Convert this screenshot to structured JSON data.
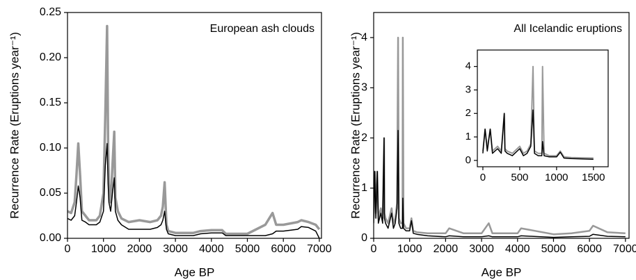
{
  "chart_data": [
    {
      "type": "line",
      "annotation": "European ash clouds",
      "xlabel": "Age BP",
      "ylabel": "Recurrence Rate (Eruptions year⁻¹)",
      "x": [
        0,
        100,
        200,
        250,
        300,
        350,
        400,
        500,
        600,
        700,
        800,
        900,
        1000,
        1050,
        1100,
        1130,
        1150,
        1200,
        1250,
        1300,
        1330,
        1400,
        1500,
        1700,
        2000,
        2300,
        2500,
        2600,
        2650,
        2700,
        2750,
        2800,
        3000,
        3500,
        3700,
        4000,
        4300,
        4400,
        5000,
        5500,
        5700,
        5800,
        6000,
        6400,
        6500,
        6700,
        6900,
        7000
      ],
      "series": [
        {
          "color": "#999999",
          "values": [
            0.03,
            0.028,
            0.04,
            0.07,
            0.105,
            0.07,
            0.03,
            0.025,
            0.02,
            0.02,
            0.02,
            0.025,
            0.05,
            0.135,
            0.235,
            0.1,
            0.06,
            0.04,
            0.08,
            0.118,
            0.045,
            0.03,
            0.022,
            0.018,
            0.02,
            0.018,
            0.02,
            0.025,
            0.035,
            0.062,
            0.015,
            0.008,
            0.006,
            0.006,
            0.008,
            0.009,
            0.009,
            0.005,
            0.005,
            0.015,
            0.028,
            0.015,
            0.015,
            0.018,
            0.02,
            0.018,
            0.015,
            0.01
          ]
        },
        {
          "color": "#000000",
          "values": [
            0.022,
            0.02,
            0.025,
            0.04,
            0.058,
            0.045,
            0.02,
            0.018,
            0.015,
            0.015,
            0.015,
            0.018,
            0.03,
            0.08,
            0.105,
            0.06,
            0.04,
            0.03,
            0.05,
            0.067,
            0.03,
            0.02,
            0.015,
            0.01,
            0.01,
            0.01,
            0.012,
            0.015,
            0.02,
            0.03,
            0.01,
            0.005,
            0.003,
            0.003,
            0.005,
            0.006,
            0.006,
            0.003,
            0.003,
            0.003,
            0.005,
            0.008,
            0.008,
            0.01,
            0.013,
            0.012,
            0.008,
            0.0
          ]
        }
      ],
      "xlim": [
        0,
        7060
      ],
      "ylim": [
        0,
        0.25
      ],
      "xticks": [
        0,
        1000,
        2000,
        3000,
        4000,
        5000,
        6000,
        7000
      ],
      "yticks": [
        {
          "value": 0,
          "label": "0.00"
        },
        {
          "value": 0.05,
          "label": "0.05"
        },
        {
          "value": 0.1,
          "label": "0.10"
        },
        {
          "value": 0.15,
          "label": "0.15"
        },
        {
          "value": 0.2,
          "label": "0.20"
        },
        {
          "value": 0.25,
          "label": "0.25"
        }
      ]
    },
    {
      "type": "line",
      "annotation": "All Icelandic eruptions",
      "xlabel": "Age BP",
      "ylabel": "Recurrence Rate (Eruptions year⁻¹)",
      "x": [
        0,
        30,
        60,
        100,
        130,
        200,
        250,
        290,
        300,
        330,
        400,
        500,
        550,
        600,
        650,
        680,
        700,
        750,
        800,
        810,
        830,
        900,
        1000,
        1050,
        1100,
        1200,
        1500,
        2000,
        2100,
        2500,
        3000,
        3200,
        3300,
        4000,
        4100,
        5000,
        5500,
        6000,
        6100,
        6500,
        7000
      ],
      "series": [
        {
          "color": "#999999",
          "values": [
            0.4,
            1.33,
            0.5,
            1.33,
            0.4,
            0.6,
            0.4,
            2.0,
            0.5,
            0.4,
            0.3,
            0.6,
            0.3,
            0.4,
            0.7,
            4.0,
            0.4,
            0.3,
            0.3,
            4.0,
            0.3,
            0.2,
            0.2,
            0.4,
            0.15,
            0.12,
            0.1,
            0.1,
            0.2,
            0.1,
            0.1,
            0.3,
            0.1,
            0.1,
            0.2,
            0.08,
            0.1,
            0.15,
            0.25,
            0.12,
            0.1
          ]
        },
        {
          "color": "#000000",
          "values": [
            0.3,
            1.33,
            0.4,
            1.33,
            0.3,
            0.5,
            0.3,
            2.0,
            0.4,
            0.3,
            0.2,
            0.5,
            0.2,
            0.3,
            0.6,
            2.15,
            0.3,
            0.2,
            0.2,
            0.8,
            0.2,
            0.15,
            0.15,
            0.35,
            0.1,
            0.08,
            0.05,
            0.03,
            0.05,
            0.03,
            0.03,
            0.05,
            0.03,
            0.03,
            0.05,
            0.02,
            0.03,
            0.04,
            0.08,
            0.04,
            0.03
          ]
        }
      ],
      "xlim": [
        0,
        7100
      ],
      "ylim": [
        0,
        4.5
      ],
      "xticks": [
        0,
        1000,
        2000,
        3000,
        4000,
        5000,
        6000,
        7000
      ],
      "yticks": [
        0,
        1,
        2,
        3,
        4
      ]
    },
    {
      "type": "line",
      "x": [
        0,
        30,
        60,
        100,
        130,
        200,
        250,
        290,
        300,
        330,
        400,
        500,
        550,
        600,
        650,
        680,
        700,
        750,
        800,
        810,
        830,
        900,
        1000,
        1050,
        1100,
        1200,
        1500
      ],
      "series": [
        {
          "color": "#999999",
          "values": [
            0.4,
            1.33,
            0.5,
            1.33,
            0.4,
            0.6,
            0.4,
            2.0,
            0.5,
            0.4,
            0.3,
            0.6,
            0.3,
            0.4,
            0.7,
            4.0,
            0.4,
            0.3,
            0.3,
            4.0,
            0.3,
            0.2,
            0.2,
            0.4,
            0.15,
            0.12,
            0.1
          ]
        },
        {
          "color": "#000000",
          "values": [
            0.3,
            1.33,
            0.4,
            1.33,
            0.3,
            0.5,
            0.3,
            2.0,
            0.4,
            0.3,
            0.2,
            0.5,
            0.2,
            0.3,
            0.6,
            2.15,
            0.3,
            0.2,
            0.2,
            0.8,
            0.2,
            0.15,
            0.15,
            0.35,
            0.1,
            0.08,
            0.05
          ]
        }
      ],
      "xlim": [
        -75,
        1700
      ],
      "ylim": [
        -0.27,
        4.7
      ],
      "xticks": [
        0,
        500,
        1000,
        1500
      ],
      "yticks": [
        0,
        1,
        2,
        3,
        4
      ]
    }
  ]
}
